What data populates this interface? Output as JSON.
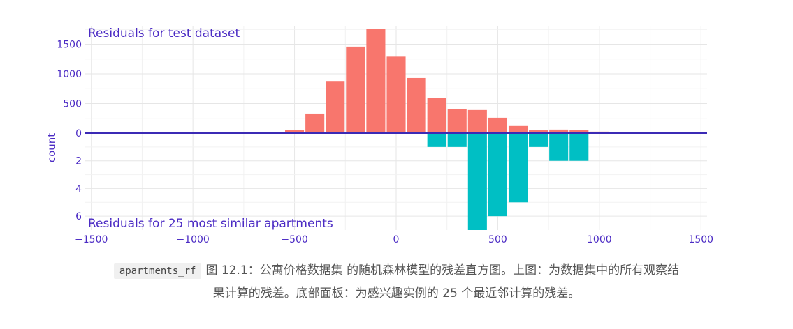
{
  "chart_data": {
    "type": "bar",
    "ylabel": "count",
    "x_ticks": [
      -1500,
      -1000,
      -500,
      0,
      500,
      1000,
      1500
    ],
    "x_range": [
      -1530,
      1530
    ],
    "bin_width": 100,
    "bar_color_top": "#F8766D",
    "bar_color_bottom": "#00BFC4",
    "axis_color": "#3B2AB5",
    "text_color": "#4B2BC4",
    "panels": [
      {
        "title": "Residuals for test dataset",
        "y_ticks": [
          0,
          500,
          1000,
          1500
        ],
        "y_range": [
          0,
          1800
        ],
        "bins": [
          {
            "x": -500,
            "count": 50
          },
          {
            "x": -400,
            "count": 330
          },
          {
            "x": -300,
            "count": 880
          },
          {
            "x": -200,
            "count": 1460
          },
          {
            "x": -100,
            "count": 1760
          },
          {
            "x": 0,
            "count": 1290
          },
          {
            "x": 100,
            "count": 930
          },
          {
            "x": 200,
            "count": 590
          },
          {
            "x": 300,
            "count": 400
          },
          {
            "x": 400,
            "count": 390
          },
          {
            "x": 500,
            "count": 260
          },
          {
            "x": 600,
            "count": 120
          },
          {
            "x": 700,
            "count": 50
          },
          {
            "x": 800,
            "count": 60
          },
          {
            "x": 900,
            "count": 50
          },
          {
            "x": 1000,
            "count": 25
          }
        ]
      },
      {
        "title": "Residuals for 25 most similar apartments",
        "y_ticks": [
          2,
          4,
          6
        ],
        "y_range": [
          0,
          7
        ],
        "bins": [
          {
            "x": 200,
            "count": 1
          },
          {
            "x": 300,
            "count": 1
          },
          {
            "x": 400,
            "count": 7
          },
          {
            "x": 500,
            "count": 6
          },
          {
            "x": 600,
            "count": 5
          },
          {
            "x": 700,
            "count": 1
          },
          {
            "x": 800,
            "count": 2
          },
          {
            "x": 900,
            "count": 2
          }
        ]
      }
    ]
  },
  "caption": {
    "code": "apartments_rf",
    "line1": "图 12.1：公寓价格数据集 的随机森林模型的残差直方图。上图：为数据集中的所有观察结",
    "line2": "果计算的残差。底部面板：为感兴趣实例的 25 个最近邻计算的残差。"
  }
}
